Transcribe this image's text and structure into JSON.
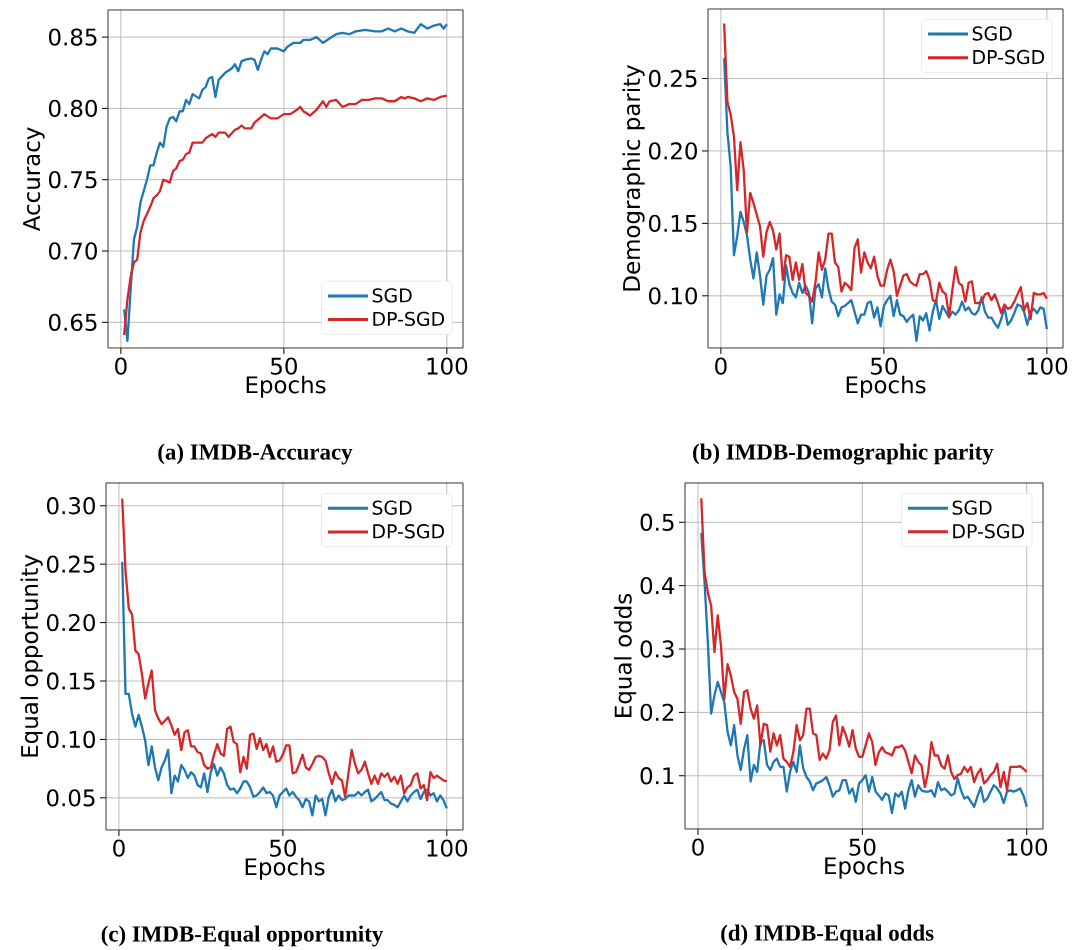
{
  "chart_data": [
    {
      "type": "line",
      "title": "(a) IMDB-Accuracy",
      "xlabel": "Epochs",
      "ylabel": "Accuracy",
      "xlim": [
        -3.95,
        104.95
      ],
      "ylim": [
        0.632,
        0.869
      ],
      "xticks": [
        0,
        50,
        100
      ],
      "yticks": [
        0.65,
        {
          "value": 0.7,
          "label": "0.70"
        },
        0.75,
        {
          "value": 0.8,
          "label": "0.80"
        },
        0.85
      ],
      "grid": true,
      "legend": "bottom right",
      "series": [
        {
          "name": "SGD",
          "color": "#1f77b4",
          "x": [
            1,
            2,
            3,
            4,
            5,
            6,
            8,
            9,
            10,
            11,
            12,
            13,
            14,
            15,
            16,
            17,
            18,
            19,
            20,
            21,
            22,
            24,
            25,
            26,
            27,
            28,
            29,
            30,
            32,
            34,
            35,
            36,
            37,
            38,
            40,
            41,
            42,
            43,
            44,
            45,
            46,
            48,
            50,
            51,
            53,
            55,
            56,
            58,
            60,
            62,
            64,
            66,
            68,
            70,
            72,
            75,
            78,
            80,
            82,
            84,
            86,
            88,
            90,
            92,
            94,
            96,
            98,
            99,
            100
          ],
          "values": [
            0.659,
            0.637,
            0.673,
            0.708,
            0.717,
            0.734,
            0.75,
            0.76,
            0.76,
            0.769,
            0.776,
            0.773,
            0.787,
            0.793,
            0.794,
            0.791,
            0.798,
            0.798,
            0.806,
            0.803,
            0.81,
            0.807,
            0.813,
            0.815,
            0.821,
            0.822,
            0.808,
            0.82,
            0.825,
            0.828,
            0.831,
            0.826,
            0.833,
            0.834,
            0.835,
            0.834,
            0.827,
            0.834,
            0.84,
            0.838,
            0.842,
            0.842,
            0.84,
            0.843,
            0.846,
            0.846,
            0.848,
            0.848,
            0.85,
            0.846,
            0.849,
            0.852,
            0.853,
            0.852,
            0.854,
            0.855,
            0.854,
            0.854,
            0.856,
            0.854,
            0.856,
            0.854,
            0.853,
            0.859,
            0.856,
            0.858,
            0.859,
            0.856,
            0.859
          ]
        },
        {
          "name": "DP-SGD",
          "color": "#d62728",
          "x": [
            1,
            2,
            3,
            4,
            5,
            6,
            7,
            8,
            9,
            10,
            11,
            12,
            13,
            14,
            15,
            16,
            17,
            18,
            19,
            20,
            21,
            22,
            24,
            25,
            26,
            28,
            29,
            30,
            32,
            33,
            35,
            36,
            37,
            38,
            40,
            41,
            42,
            44,
            46,
            48,
            50,
            52,
            54,
            55,
            56,
            58,
            60,
            62,
            63,
            64,
            66,
            68,
            70,
            72,
            74,
            76,
            78,
            80,
            82,
            84,
            86,
            87,
            88,
            90,
            92,
            94,
            96,
            98,
            100
          ],
          "values": [
            0.641,
            0.666,
            0.682,
            0.692,
            0.694,
            0.713,
            0.721,
            0.726,
            0.731,
            0.737,
            0.739,
            0.742,
            0.75,
            0.749,
            0.748,
            0.756,
            0.758,
            0.763,
            0.764,
            0.768,
            0.769,
            0.776,
            0.776,
            0.776,
            0.779,
            0.782,
            0.78,
            0.783,
            0.783,
            0.78,
            0.785,
            0.786,
            0.788,
            0.786,
            0.786,
            0.79,
            0.792,
            0.796,
            0.793,
            0.793,
            0.796,
            0.796,
            0.799,
            0.801,
            0.798,
            0.795,
            0.799,
            0.805,
            0.801,
            0.805,
            0.806,
            0.801,
            0.803,
            0.803,
            0.806,
            0.806,
            0.807,
            0.807,
            0.805,
            0.805,
            0.808,
            0.807,
            0.808,
            0.807,
            0.805,
            0.807,
            0.806,
            0.808,
            0.809
          ]
        }
      ]
    },
    {
      "type": "line",
      "title": "(b) IMDB-Demographic parity",
      "xlabel": "Epochs",
      "ylabel": "Demographic parity",
      "xlim": [
        -3.95,
        104.95
      ],
      "ylim": [
        0.064,
        0.298
      ],
      "xticks": [
        0,
        50,
        100
      ],
      "yticks": [
        {
          "value": 0.1,
          "label": "0.10"
        },
        0.15,
        {
          "value": 0.2,
          "label": "0.20"
        },
        0.25
      ],
      "grid": true,
      "legend": "top right",
      "x": [
        1,
        2,
        3,
        4,
        5,
        6,
        7,
        8,
        9,
        10,
        11,
        12,
        13,
        14,
        15,
        16,
        17,
        18,
        19,
        20,
        21,
        22,
        23,
        24,
        25,
        26,
        27,
        28,
        29,
        30,
        31,
        32,
        33,
        34,
        35,
        36,
        37,
        38,
        39,
        40,
        41,
        42,
        43,
        44,
        45,
        46,
        47,
        48,
        49,
        50,
        51,
        52,
        53,
        54,
        55,
        56,
        57,
        58,
        59,
        60,
        61,
        62,
        63,
        64,
        65,
        66,
        67,
        68,
        69,
        70,
        71,
        72,
        73,
        74,
        75,
        76,
        77,
        78,
        79,
        80,
        81,
        82,
        83,
        84,
        85,
        86,
        87,
        88,
        89,
        90,
        91,
        92,
        93,
        94,
        95,
        96,
        97,
        98,
        99,
        100
      ],
      "series": [
        {
          "name": "SGD",
          "color": "#1f77b4",
          "values": [
            0.264,
            0.213,
            0.189,
            0.128,
            0.141,
            0.158,
            0.151,
            0.142,
            0.125,
            0.112,
            0.13,
            0.114,
            0.094,
            0.114,
            0.118,
            0.126,
            0.087,
            0.101,
            0.095,
            0.121,
            0.108,
            0.102,
            0.099,
            0.109,
            0.102,
            0.107,
            0.102,
            0.081,
            0.105,
            0.108,
            0.099,
            0.119,
            0.105,
            0.096,
            0.094,
            0.086,
            0.092,
            0.093,
            0.095,
            0.097,
            0.089,
            0.081,
            0.087,
            0.087,
            0.095,
            0.096,
            0.085,
            0.092,
            0.079,
            0.093,
            0.097,
            0.1,
            0.086,
            0.097,
            0.087,
            0.086,
            0.082,
            0.085,
            0.087,
            0.069,
            0.086,
            0.083,
            0.088,
            0.076,
            0.089,
            0.097,
            0.084,
            0.093,
            0.089,
            0.085,
            0.089,
            0.087,
            0.09,
            0.096,
            0.09,
            0.092,
            0.088,
            0.087,
            0.09,
            0.099,
            0.089,
            0.085,
            0.085,
            0.081,
            0.078,
            0.084,
            0.092,
            0.08,
            0.083,
            0.088,
            0.094,
            0.093,
            0.089,
            0.08,
            0.089,
            0.091,
            0.088,
            0.092,
            0.091,
            0.077
          ]
        },
        {
          "name": "DP-SGD",
          "color": "#d62728",
          "values": [
            0.288,
            0.234,
            0.225,
            0.21,
            0.173,
            0.206,
            0.187,
            0.144,
            0.171,
            0.164,
            0.156,
            0.148,
            0.127,
            0.144,
            0.151,
            0.145,
            0.132,
            0.143,
            0.111,
            0.128,
            0.127,
            0.111,
            0.123,
            0.111,
            0.122,
            0.102,
            0.1,
            0.096,
            0.109,
            0.13,
            0.118,
            0.125,
            0.143,
            0.143,
            0.123,
            0.12,
            0.103,
            0.109,
            0.107,
            0.104,
            0.133,
            0.139,
            0.116,
            0.13,
            0.123,
            0.119,
            0.127,
            0.114,
            0.107,
            0.107,
            0.118,
            0.125,
            0.117,
            0.1,
            0.107,
            0.114,
            0.115,
            0.11,
            0.108,
            0.107,
            0.115,
            0.115,
            0.117,
            0.111,
            0.097,
            0.096,
            0.109,
            0.103,
            0.101,
            0.086,
            0.104,
            0.12,
            0.109,
            0.107,
            0.096,
            0.109,
            0.11,
            0.095,
            0.095,
            0.096,
            0.101,
            0.102,
            0.097,
            0.101,
            0.095,
            0.088,
            0.094,
            0.091,
            0.092,
            0.096,
            0.101,
            0.106,
            0.09,
            0.095,
            0.084,
            0.102,
            0.101,
            0.101,
            0.102,
            0.098
          ]
        }
      ]
    },
    {
      "type": "line",
      "title": "(c) IMDB-Equal opportunity",
      "xlabel": "Epochs",
      "ylabel": "Equal opportunity",
      "xlim": [
        -3.95,
        104.95
      ],
      "ylim": [
        0.0225,
        0.3195
      ],
      "xticks": [
        0,
        50,
        100
      ],
      "yticks": [
        0.05,
        {
          "value": 0.1,
          "label": "0.10"
        },
        0.15,
        {
          "value": 0.2,
          "label": "0.20"
        },
        0.25,
        {
          "value": 0.3,
          "label": "0.30"
        }
      ],
      "grid": true,
      "legend": "top right",
      "x": [
        1,
        2,
        3,
        4,
        5,
        6,
        7,
        8,
        9,
        10,
        11,
        12,
        13,
        14,
        15,
        16,
        17,
        18,
        19,
        20,
        21,
        22,
        23,
        24,
        25,
        26,
        27,
        28,
        29,
        30,
        31,
        32,
        33,
        34,
        35,
        36,
        37,
        38,
        39,
        40,
        41,
        42,
        43,
        44,
        45,
        46,
        47,
        48,
        49,
        50,
        51,
        52,
        53,
        54,
        55,
        56,
        57,
        58,
        59,
        60,
        61,
        62,
        63,
        64,
        65,
        66,
        67,
        68,
        69,
        70,
        71,
        72,
        73,
        74,
        75,
        76,
        77,
        78,
        79,
        80,
        81,
        82,
        83,
        84,
        85,
        86,
        87,
        88,
        89,
        90,
        91,
        92,
        93,
        94,
        95,
        96,
        97,
        98,
        99,
        100
      ],
      "series": [
        {
          "name": "SGD",
          "color": "#1f77b4",
          "values": [
            0.252,
            0.139,
            0.139,
            0.122,
            0.111,
            0.121,
            0.111,
            0.099,
            0.078,
            0.094,
            0.076,
            0.065,
            0.076,
            0.082,
            0.091,
            0.054,
            0.069,
            0.064,
            0.078,
            0.074,
            0.067,
            0.072,
            0.069,
            0.061,
            0.059,
            0.071,
            0.055,
            0.072,
            0.079,
            0.069,
            0.076,
            0.071,
            0.061,
            0.057,
            0.058,
            0.054,
            0.058,
            0.064,
            0.064,
            0.059,
            0.051,
            0.052,
            0.055,
            0.059,
            0.054,
            0.055,
            0.052,
            0.042,
            0.052,
            0.055,
            0.058,
            0.052,
            0.055,
            0.051,
            0.048,
            0.042,
            0.049,
            0.047,
            0.035,
            0.052,
            0.047,
            0.049,
            0.035,
            0.051,
            0.057,
            0.047,
            0.052,
            0.048,
            0.049,
            0.052,
            0.052,
            0.052,
            0.055,
            0.052,
            0.055,
            0.057,
            0.047,
            0.049,
            0.052,
            0.055,
            0.048,
            0.048,
            0.045,
            0.044,
            0.042,
            0.047,
            0.052,
            0.047,
            0.052,
            0.055,
            0.057,
            0.049,
            0.055,
            0.057,
            0.052,
            0.054,
            0.047,
            0.052,
            0.048,
            0.041
          ]
        },
        {
          "name": "DP-SGD",
          "color": "#d62728",
          "values": [
            0.306,
            0.244,
            0.212,
            0.207,
            0.176,
            0.173,
            0.156,
            0.135,
            0.148,
            0.159,
            0.125,
            0.118,
            0.113,
            0.116,
            0.119,
            0.112,
            0.104,
            0.109,
            0.091,
            0.106,
            0.108,
            0.094,
            0.094,
            0.089,
            0.088,
            0.078,
            0.075,
            0.076,
            0.087,
            0.096,
            0.088,
            0.086,
            0.109,
            0.111,
            0.098,
            0.096,
            0.072,
            0.085,
            0.075,
            0.104,
            0.105,
            0.092,
            0.101,
            0.091,
            0.096,
            0.085,
            0.094,
            0.081,
            0.082,
            0.087,
            0.095,
            0.095,
            0.071,
            0.072,
            0.079,
            0.087,
            0.076,
            0.074,
            0.079,
            0.085,
            0.086,
            0.085,
            0.082,
            0.071,
            0.062,
            0.072,
            0.067,
            0.065,
            0.051,
            0.071,
            0.091,
            0.079,
            0.071,
            0.074,
            0.081,
            0.071,
            0.062,
            0.069,
            0.062,
            0.071,
            0.068,
            0.071,
            0.064,
            0.068,
            0.062,
            0.069,
            0.054,
            0.059,
            0.061,
            0.069,
            0.071,
            0.058,
            0.061,
            0.048,
            0.072,
            0.067,
            0.069,
            0.067,
            0.065,
            0.064
          ]
        }
      ]
    },
    {
      "type": "line",
      "title": "(d) IMDB-Equal odds",
      "xlabel": "Epochs",
      "ylabel": "Equal odds",
      "xlim": [
        -3.95,
        104.95
      ],
      "ylim": [
        0.016,
        0.562
      ],
      "xticks": [
        0,
        50,
        100
      ],
      "yticks": [
        0.1,
        0.2,
        0.3,
        0.4,
        0.5
      ],
      "grid": true,
      "legend": "top right",
      "x": [
        1,
        2,
        3,
        4,
        5,
        6,
        7,
        8,
        9,
        10,
        11,
        12,
        13,
        14,
        15,
        16,
        17,
        18,
        19,
        20,
        21,
        22,
        23,
        24,
        25,
        26,
        27,
        28,
        29,
        30,
        31,
        32,
        33,
        34,
        35,
        36,
        37,
        38,
        39,
        40,
        41,
        42,
        43,
        44,
        45,
        46,
        47,
        48,
        49,
        50,
        51,
        52,
        53,
        54,
        55,
        56,
        57,
        58,
        59,
        60,
        61,
        62,
        63,
        64,
        65,
        66,
        67,
        68,
        69,
        70,
        71,
        72,
        73,
        74,
        75,
        76,
        77,
        78,
        79,
        80,
        81,
        82,
        83,
        84,
        85,
        86,
        87,
        88,
        89,
        90,
        91,
        92,
        93,
        94,
        95,
        96,
        97,
        98,
        99,
        100
      ],
      "series": [
        {
          "name": "SGD",
          "color": "#1f77b4",
          "values": [
            0.483,
            0.405,
            0.31,
            0.198,
            0.227,
            0.248,
            0.232,
            0.216,
            0.169,
            0.148,
            0.18,
            0.132,
            0.109,
            0.142,
            0.164,
            0.091,
            0.117,
            0.106,
            0.154,
            0.156,
            0.117,
            0.109,
            0.122,
            0.127,
            0.114,
            0.114,
            0.075,
            0.106,
            0.122,
            0.106,
            0.148,
            0.112,
            0.098,
            0.091,
            0.077,
            0.088,
            0.09,
            0.093,
            0.098,
            0.085,
            0.067,
            0.075,
            0.077,
            0.093,
            0.093,
            0.072,
            0.08,
            0.059,
            0.088,
            0.093,
            0.101,
            0.075,
            0.098,
            0.075,
            0.069,
            0.062,
            0.072,
            0.069,
            0.041,
            0.072,
            0.067,
            0.075,
            0.048,
            0.077,
            0.093,
            0.067,
            0.085,
            0.077,
            0.075,
            0.075,
            0.077,
            0.067,
            0.09,
            0.077,
            0.08,
            0.075,
            0.069,
            0.072,
            0.096,
            0.077,
            0.064,
            0.067,
            0.059,
            0.051,
            0.067,
            0.082,
            0.059,
            0.064,
            0.075,
            0.085,
            0.08,
            0.072,
            0.057,
            0.075,
            0.077,
            0.075,
            0.077,
            0.08,
            0.069,
            0.051
          ]
        },
        {
          "name": "DP-SGD",
          "color": "#d62728",
          "values": [
            0.538,
            0.42,
            0.389,
            0.368,
            0.295,
            0.353,
            0.305,
            0.221,
            0.276,
            0.258,
            0.232,
            0.221,
            0.182,
            0.232,
            0.235,
            0.206,
            0.19,
            0.211,
            0.148,
            0.182,
            0.18,
            0.138,
            0.167,
            0.148,
            0.164,
            0.127,
            0.122,
            0.114,
            0.137,
            0.18,
            0.156,
            0.164,
            0.206,
            0.206,
            0.167,
            0.164,
            0.125,
            0.135,
            0.127,
            0.14,
            0.185,
            0.195,
            0.148,
            0.177,
            0.164,
            0.146,
            0.172,
            0.143,
            0.13,
            0.13,
            0.148,
            0.167,
            0.153,
            0.117,
            0.137,
            0.145,
            0.137,
            0.135,
            0.132,
            0.145,
            0.145,
            0.148,
            0.14,
            0.122,
            0.104,
            0.132,
            0.122,
            0.116,
            0.082,
            0.106,
            0.153,
            0.132,
            0.132,
            0.116,
            0.111,
            0.132,
            0.106,
            0.095,
            0.101,
            0.103,
            0.114,
            0.106,
            0.114,
            0.09,
            0.103,
            0.111,
            0.088,
            0.093,
            0.101,
            0.106,
            0.119,
            0.082,
            0.106,
            0.077,
            0.114,
            0.114,
            0.114,
            0.115,
            0.111,
            0.106
          ]
        }
      ]
    }
  ]
}
